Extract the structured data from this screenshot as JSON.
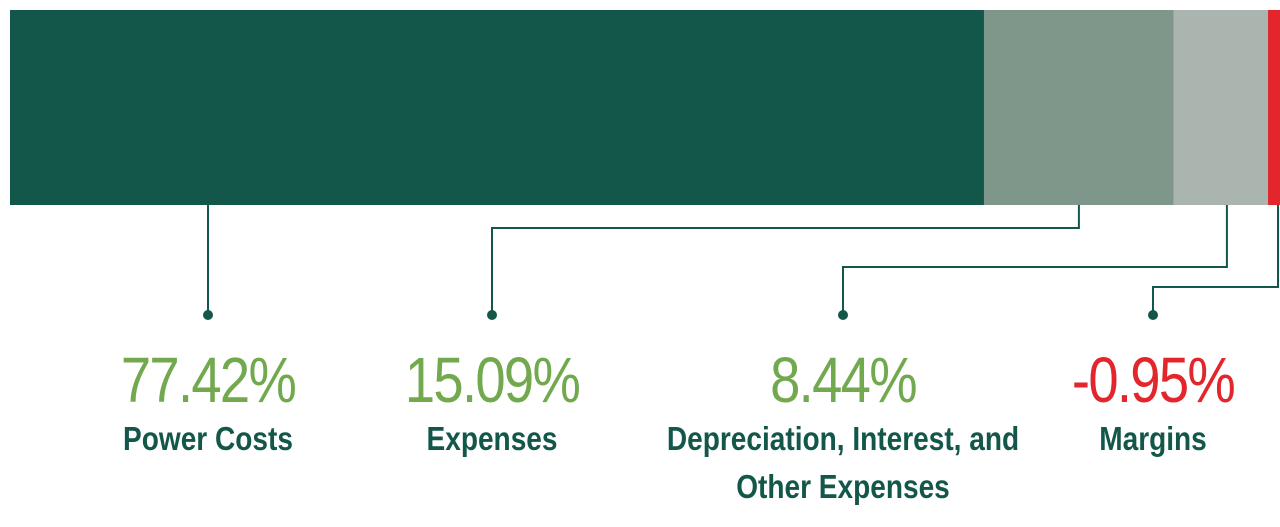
{
  "chart_data": {
    "type": "stacked-bar",
    "categories": [
      "Power Costs",
      "Expenses",
      "Depreciation, Interest, and Other Expenses",
      "Margins"
    ],
    "values": [
      77.42,
      15.09,
      8.44,
      -0.95
    ],
    "value_labels": [
      "77.42%",
      "15.09%",
      "8.44%",
      "-0.95%"
    ],
    "colors": [
      "#13574a",
      "#7f978b",
      "#a9b5ae",
      "#e3262b"
    ],
    "label_colors": [
      "#72a94f",
      "#72a94f",
      "#72a94f",
      "#e3262b"
    ]
  }
}
